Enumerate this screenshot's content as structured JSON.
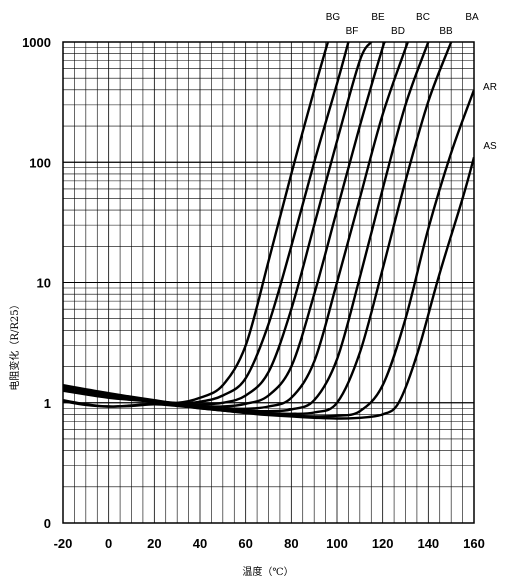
{
  "chart_data": {
    "type": "line",
    "title": "",
    "xlabel": "温度（℃）",
    "ylabel": "电阻变化（R/R25）",
    "xlim": [
      -20,
      160
    ],
    "ylim": [
      0.1,
      1000
    ],
    "y_scale": "log",
    "grid": true,
    "legend": "none",
    "x_ticks": [
      "-20",
      "0",
      "20",
      "40",
      "60",
      "80",
      "100",
      "120",
      "140",
      "160"
    ],
    "y_ticks": [
      {
        "value": 0.1,
        "label": "0"
      },
      {
        "value": 1,
        "label": "1"
      },
      {
        "value": 10,
        "label": "10"
      },
      {
        "value": 100,
        "label": "100"
      },
      {
        "value": 1000,
        "label": "1000"
      }
    ],
    "series": [
      {
        "name": "BG",
        "points": [
          [
            -20,
            1.4
          ],
          [
            0,
            1.2
          ],
          [
            20,
            1.05
          ],
          [
            30,
            1.0
          ],
          [
            40,
            1.1
          ],
          [
            50,
            1.4
          ],
          [
            60,
            3
          ],
          [
            70,
            15
          ],
          [
            80,
            80
          ],
          [
            90,
            400
          ],
          [
            96,
            1000
          ]
        ]
      },
      {
        "name": "BF",
        "points": [
          [
            -20,
            1.38
          ],
          [
            0,
            1.18
          ],
          [
            20,
            1.04
          ],
          [
            30,
            0.99
          ],
          [
            40,
            1.02
          ],
          [
            50,
            1.15
          ],
          [
            60,
            1.6
          ],
          [
            70,
            4.5
          ],
          [
            80,
            20
          ],
          [
            90,
            100
          ],
          [
            100,
            450
          ],
          [
            105,
            1000
          ]
        ]
      },
      {
        "name": "BE",
        "points": [
          [
            -20,
            1.35
          ],
          [
            0,
            1.17
          ],
          [
            20,
            1.04
          ],
          [
            30,
            0.98
          ],
          [
            40,
            0.97
          ],
          [
            50,
            1.0
          ],
          [
            60,
            1.15
          ],
          [
            70,
            1.8
          ],
          [
            80,
            6
          ],
          [
            90,
            30
          ],
          [
            100,
            150
          ],
          [
            110,
            700
          ],
          [
            115,
            1000
          ]
        ]
      },
      {
        "name": "BD",
        "points": [
          [
            -20,
            1.32
          ],
          [
            0,
            1.16
          ],
          [
            20,
            1.03
          ],
          [
            30,
            0.97
          ],
          [
            40,
            0.94
          ],
          [
            50,
            0.93
          ],
          [
            60,
            0.98
          ],
          [
            70,
            1.15
          ],
          [
            80,
            2
          ],
          [
            90,
            8
          ],
          [
            100,
            40
          ],
          [
            110,
            200
          ],
          [
            120,
            900
          ],
          [
            121,
            1000
          ]
        ]
      },
      {
        "name": "BC",
        "points": [
          [
            -20,
            1.3
          ],
          [
            0,
            1.14
          ],
          [
            20,
            1.03
          ],
          [
            30,
            0.97
          ],
          [
            40,
            0.93
          ],
          [
            50,
            0.9
          ],
          [
            60,
            0.89
          ],
          [
            70,
            0.93
          ],
          [
            80,
            1.1
          ],
          [
            90,
            2.2
          ],
          [
            100,
            10
          ],
          [
            110,
            50
          ],
          [
            120,
            250
          ],
          [
            131,
            1000
          ]
        ]
      },
      {
        "name": "BB",
        "points": [
          [
            -20,
            1.28
          ],
          [
            0,
            1.12
          ],
          [
            20,
            1.02
          ],
          [
            30,
            0.96
          ],
          [
            40,
            0.92
          ],
          [
            50,
            0.88
          ],
          [
            60,
            0.86
          ],
          [
            70,
            0.85
          ],
          [
            80,
            0.88
          ],
          [
            90,
            1.05
          ],
          [
            100,
            2.3
          ],
          [
            110,
            11
          ],
          [
            120,
            60
          ],
          [
            130,
            300
          ],
          [
            140,
            1000
          ]
        ]
      },
      {
        "name": "BA",
        "points": [
          [
            -20,
            1.26
          ],
          [
            0,
            1.1
          ],
          [
            20,
            1.02
          ],
          [
            30,
            0.96
          ],
          [
            40,
            0.91
          ],
          [
            50,
            0.87
          ],
          [
            60,
            0.84
          ],
          [
            70,
            0.82
          ],
          [
            80,
            0.81
          ],
          [
            90,
            0.83
          ],
          [
            100,
            1.0
          ],
          [
            110,
            2.6
          ],
          [
            120,
            13
          ],
          [
            130,
            70
          ],
          [
            140,
            320
          ],
          [
            150,
            1000
          ]
        ]
      },
      {
        "name": "AR",
        "points": [
          [
            -20,
            1.05
          ],
          [
            -10,
            0.97
          ],
          [
            0,
            0.93
          ],
          [
            10,
            0.95
          ],
          [
            20,
            0.98
          ],
          [
            30,
            0.95
          ],
          [
            40,
            0.9
          ],
          [
            50,
            0.86
          ],
          [
            60,
            0.83
          ],
          [
            70,
            0.8
          ],
          [
            80,
            0.78
          ],
          [
            90,
            0.77
          ],
          [
            100,
            0.78
          ],
          [
            110,
            0.85
          ],
          [
            120,
            1.4
          ],
          [
            130,
            5
          ],
          [
            140,
            28
          ],
          [
            150,
            120
          ],
          [
            160,
            400
          ]
        ]
      },
      {
        "name": "AS",
        "points": [
          [
            -20,
            1.03
          ],
          [
            -10,
            0.96
          ],
          [
            0,
            0.93
          ],
          [
            10,
            0.94
          ],
          [
            20,
            0.97
          ],
          [
            30,
            0.94
          ],
          [
            40,
            0.9
          ],
          [
            50,
            0.86
          ],
          [
            60,
            0.82
          ],
          [
            70,
            0.79
          ],
          [
            80,
            0.77
          ],
          [
            90,
            0.75
          ],
          [
            100,
            0.74
          ],
          [
            110,
            0.75
          ],
          [
            120,
            0.8
          ],
          [
            127,
            1.0
          ],
          [
            135,
            2.5
          ],
          [
            145,
            12
          ],
          [
            155,
            50
          ],
          [
            160,
            110
          ]
        ]
      }
    ]
  }
}
